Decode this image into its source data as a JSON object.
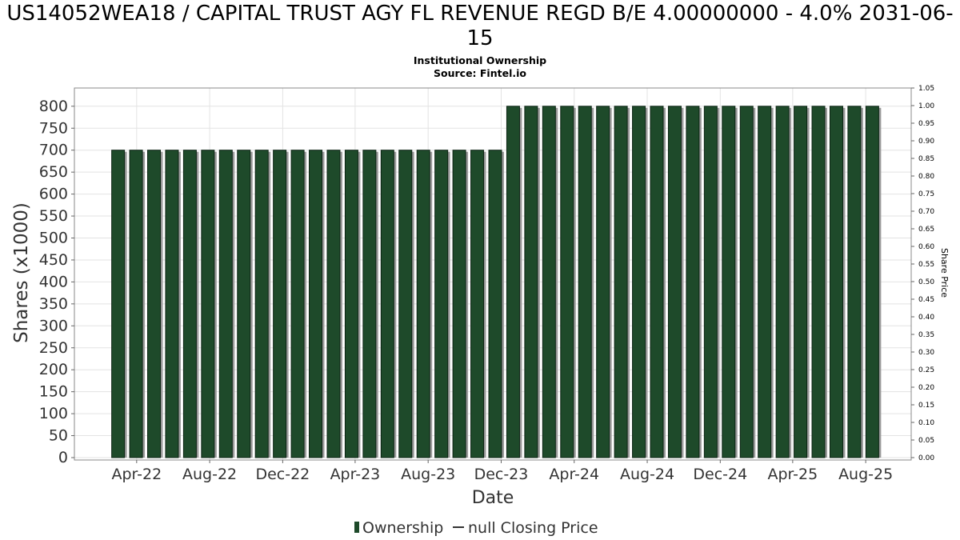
{
  "title": "US14052WEA18 / CAPITAL TRUST AGY FL REVENUE REGD B/E 4.00000000 - 4.0% 2031-06-15",
  "subtitle_lines": [
    "Institutional Ownership",
    "Source: Fintel.io"
  ],
  "colors": {
    "bar_fill": "#1e4a2a",
    "bar_stroke": "#0c2414",
    "bar_shadow": "#9a9a9a",
    "grid": "#e3e3e3",
    "plot_border": "#888888"
  },
  "chart_data": {
    "type": "bar",
    "title": "US14052WEA18 / CAPITAL TRUST AGY FL REVENUE REGD B/E 4.00000000 - 4.0% 2031-06-15",
    "subtitle": "Institutional Ownership / Source: Fintel.io",
    "xlabel": "Date",
    "ylabel": "Shares (x1000)",
    "y2label": "Share Price",
    "ylim": [
      0,
      840
    ],
    "y2lim": [
      0,
      1.05
    ],
    "x_range": [
      "2021-12-18",
      "2025-10-16"
    ],
    "yticks": [
      0,
      50,
      100,
      150,
      200,
      250,
      300,
      350,
      400,
      450,
      500,
      550,
      600,
      650,
      700,
      750,
      800
    ],
    "y2ticks": [
      "0.00",
      "0.05",
      "0.10",
      "0.15",
      "0.20",
      "0.25",
      "0.30",
      "0.35",
      "0.40",
      "0.45",
      "0.50",
      "0.55",
      "0.60",
      "0.65",
      "0.70",
      "0.75",
      "0.80",
      "0.85",
      "0.90",
      "0.95",
      "1.00",
      "1.05"
    ],
    "xticks": [
      {
        "label": "Apr-22",
        "date": "2022-04-01"
      },
      {
        "label": "Aug-22",
        "date": "2022-08-01"
      },
      {
        "label": "Dec-22",
        "date": "2022-12-01"
      },
      {
        "label": "Apr-23",
        "date": "2023-04-01"
      },
      {
        "label": "Aug-23",
        "date": "2023-08-01"
      },
      {
        "label": "Dec-23",
        "date": "2023-12-01"
      },
      {
        "label": "Apr-24",
        "date": "2024-04-01"
      },
      {
        "label": "Aug-24",
        "date": "2024-08-01"
      },
      {
        "label": "Dec-24",
        "date": "2024-12-01"
      },
      {
        "label": "Apr-25",
        "date": "2025-04-01"
      },
      {
        "label": "Aug-25",
        "date": "2025-08-01"
      }
    ],
    "grid": true,
    "legend_position": "bottom",
    "series": [
      {
        "name": "Ownership",
        "x": [
          "2022-03-01",
          "2022-03-31",
          "2022-04-30",
          "2022-05-30",
          "2022-06-29",
          "2022-07-29",
          "2022-08-28",
          "2022-09-27",
          "2022-10-27",
          "2022-11-26",
          "2022-12-26",
          "2023-01-25",
          "2023-02-24",
          "2023-03-26",
          "2023-04-25",
          "2023-05-25",
          "2023-06-24",
          "2023-07-24",
          "2023-08-23",
          "2023-09-22",
          "2023-10-22",
          "2023-11-21",
          "2023-12-21",
          "2024-01-20",
          "2024-02-19",
          "2024-03-20",
          "2024-04-19",
          "2024-05-19",
          "2024-06-18",
          "2024-07-18",
          "2024-08-17",
          "2024-09-16",
          "2024-10-16",
          "2024-11-15",
          "2024-12-15",
          "2025-01-14",
          "2025-02-13",
          "2025-03-15",
          "2025-04-14",
          "2025-05-14",
          "2025-06-13",
          "2025-07-13",
          "2025-08-12"
        ],
        "values": [
          700,
          700,
          700,
          700,
          700,
          700,
          700,
          700,
          700,
          700,
          700,
          700,
          700,
          700,
          700,
          700,
          700,
          700,
          700,
          700,
          700,
          700,
          800,
          800,
          800,
          800,
          800,
          800,
          800,
          800,
          800,
          800,
          800,
          800,
          800,
          800,
          800,
          800,
          800,
          800,
          800,
          800,
          800
        ]
      },
      {
        "name": "null Closing Price",
        "x": [],
        "values": []
      }
    ]
  },
  "legend": [
    {
      "label": "Ownership",
      "icon": "bar-legend-icon"
    },
    {
      "label": "null Closing Price",
      "icon": "line-legend-icon"
    }
  ]
}
